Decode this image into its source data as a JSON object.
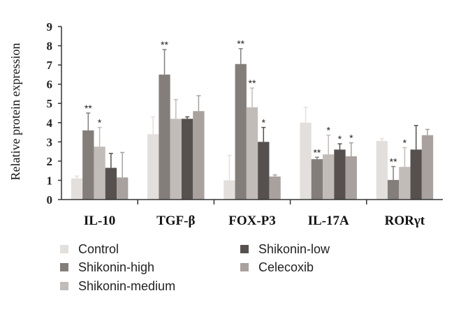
{
  "chart_data": {
    "type": "bar",
    "ylabel": "Relative protein expression",
    "xlabel": "",
    "ylim": [
      0,
      9
    ],
    "yticks": [
      0,
      1,
      2,
      3,
      4,
      5,
      6,
      7,
      8,
      9
    ],
    "categories": [
      "IL-10",
      "TGF-β",
      "FOX-P3",
      "IL-17A",
      "RORγt"
    ],
    "legend_placement": "bottom",
    "series": [
      {
        "name": "Control",
        "color": "#e3dfdd",
        "values": [
          1.1,
          3.4,
          1.0,
          4.0,
          3.05
        ],
        "errors": [
          0.12,
          0.9,
          1.3,
          0.8,
          0.12
        ],
        "marks": [
          "",
          "",
          "",
          "",
          ""
        ]
      },
      {
        "name": "Shikonin-high",
        "color": "#847e7b",
        "values": [
          3.6,
          6.5,
          7.05,
          2.1,
          1.02
        ],
        "errors": [
          0.9,
          1.3,
          0.8,
          0.1,
          0.7
        ],
        "marks": [
          "**",
          "**",
          "**",
          "**",
          "**"
        ]
      },
      {
        "name": "Shikonin-medium",
        "color": "#c2bcb9",
        "values": [
          2.75,
          4.2,
          4.8,
          2.35,
          1.7
        ],
        "errors": [
          1.0,
          1.0,
          1.0,
          1.0,
          1.0
        ],
        "marks": [
          "*",
          "",
          "**",
          "*",
          "*"
        ]
      },
      {
        "name": "Shikonin-low",
        "color": "#56504e",
        "values": [
          1.65,
          4.2,
          3.0,
          2.6,
          2.6
        ],
        "errors": [
          0.75,
          0.1,
          0.75,
          0.3,
          1.25
        ],
        "marks": [
          "",
          "",
          "*",
          "*",
          ""
        ]
      },
      {
        "name": "Celecoxib",
        "color": "#a8a19e",
        "values": [
          1.15,
          4.6,
          1.2,
          2.25,
          3.35
        ],
        "errors": [
          1.3,
          0.8,
          0.08,
          0.7,
          0.3
        ],
        "marks": [
          "",
          "",
          "",
          "*",
          ""
        ]
      }
    ]
  }
}
